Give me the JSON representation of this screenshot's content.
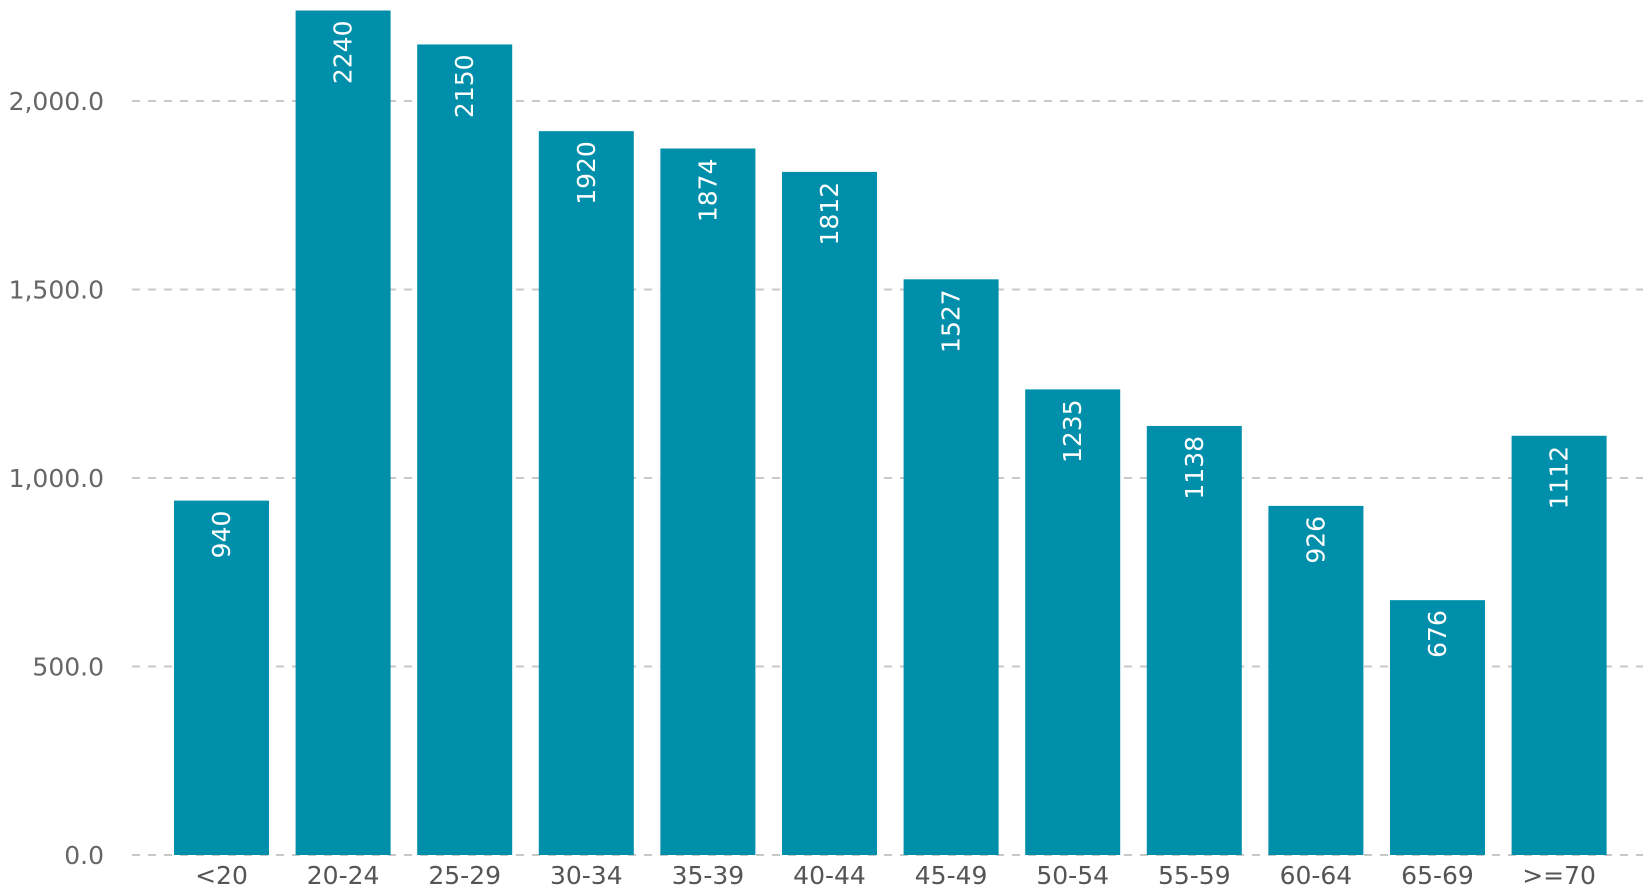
{
  "chart_data": {
    "type": "bar",
    "categories": [
      "<20",
      "20-24",
      "25-29",
      "30-34",
      "35-39",
      "40-44",
      "45-49",
      "50-54",
      "55-59",
      "60-64",
      "65-69",
      ">=70"
    ],
    "values": [
      940,
      2240,
      2150,
      1920,
      1874,
      1812,
      1527,
      1235,
      1138,
      926,
      676,
      1112
    ],
    "data_labels": [
      "940",
      "2240",
      "2150",
      "1920",
      "1874",
      "1812",
      "1527",
      "1235",
      "1138",
      "926",
      "676",
      "1112"
    ],
    "title": "",
    "xlabel": "",
    "ylabel": "",
    "ylim": [
      0,
      2250
    ],
    "y_ticks": [
      0,
      500,
      1000,
      1500,
      2000
    ],
    "y_tick_labels": [
      "0.0",
      "500.0",
      "1,000.0",
      "1,500.0",
      "2,000.0"
    ],
    "grid": true,
    "legend": "none",
    "colors": {
      "bar": "#008FAB",
      "grid": "#C8C8C8",
      "tick_text": "#666666",
      "label_text": "#FFFFFF"
    }
  }
}
